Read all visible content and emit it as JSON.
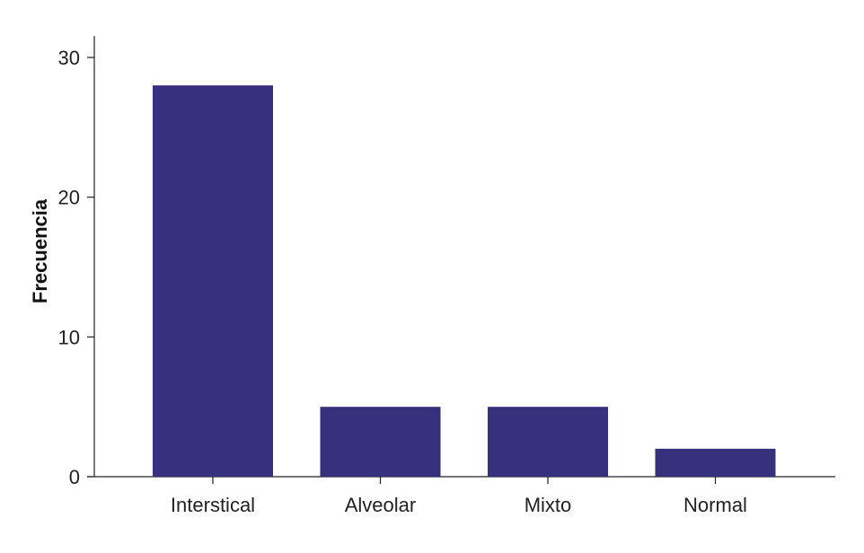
{
  "chart_data": {
    "type": "bar",
    "title": "",
    "xlabel": "",
    "ylabel": "Frecuencia",
    "categories": [
      "Interstical",
      "Alveolar",
      "Mixto",
      "Normal"
    ],
    "values": [
      28,
      5,
      5,
      2
    ],
    "ylim": [
      0,
      30
    ],
    "yticks": [
      "0",
      "10",
      "20",
      "30"
    ],
    "grid": false,
    "legend": "none",
    "bar_color": "#37307D"
  }
}
